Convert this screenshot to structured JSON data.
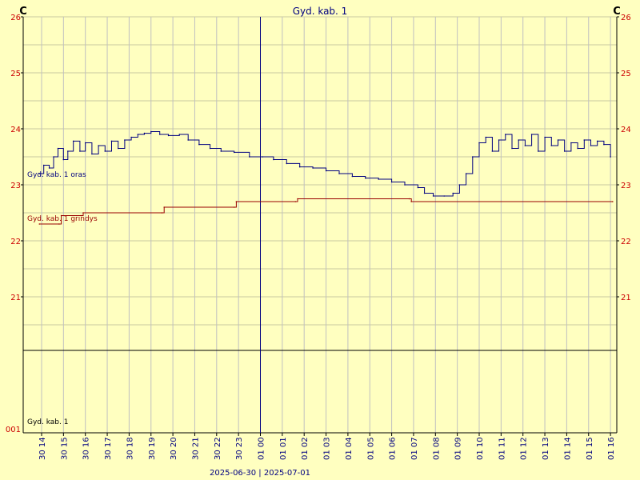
{
  "chart_data": {
    "type": "line",
    "title": "Gyd. kab. 1",
    "unit_left": "C",
    "unit_right": "C",
    "y_ticks": [
      "26",
      "25",
      "24",
      "23",
      "22",
      "21"
    ],
    "ylim": [
      20,
      26
    ],
    "grid": true,
    "x_ticks": [
      "30 14",
      "30 15",
      "30 16",
      "30 17",
      "30 18",
      "30 19",
      "30 20",
      "30 21",
      "30 22",
      "30 23",
      "01 00",
      "01 01",
      "01 02",
      "01 03",
      "01 04",
      "01 05",
      "01 06",
      "01 07",
      "01 08",
      "01 09",
      "01 10",
      "01 11",
      "01 12",
      "01 13",
      "01 14",
      "01 15",
      "01 16"
    ],
    "date_footer": "2025-06-30  |  2025-07-01",
    "lower_panel_label": "Gyd. kab. 1",
    "lower_panel_tick": "001",
    "series": [
      {
        "name": "Gyd. kab. 1 oras",
        "color": "#000080",
        "points": [
          [
            "30 13.90",
            23.2
          ],
          [
            "30 14.10",
            23.35
          ],
          [
            "30 14.35",
            23.3
          ],
          [
            "30 14.55",
            23.5
          ],
          [
            "30 14.75",
            23.65
          ],
          [
            "30 15.00",
            23.45
          ],
          [
            "30 15.20",
            23.6
          ],
          [
            "30 15.45",
            23.78
          ],
          [
            "30 15.75",
            23.6
          ],
          [
            "30 16.00",
            23.75
          ],
          [
            "30 16.30",
            23.55
          ],
          [
            "30 16.60",
            23.7
          ],
          [
            "30 16.90",
            23.6
          ],
          [
            "30 17.20",
            23.78
          ],
          [
            "30 17.50",
            23.65
          ],
          [
            "30 17.80",
            23.8
          ],
          [
            "30 18.10",
            23.85
          ],
          [
            "30 18.40",
            23.9
          ],
          [
            "30 18.70",
            23.92
          ],
          [
            "30 19.00",
            23.95
          ],
          [
            "30 19.40",
            23.9
          ],
          [
            "30 19.80",
            23.88
          ],
          [
            "30 20.30",
            23.9
          ],
          [
            "30 20.70",
            23.8
          ],
          [
            "30 21.20",
            23.72
          ],
          [
            "30 21.70",
            23.65
          ],
          [
            "30 22.20",
            23.6
          ],
          [
            "30 22.80",
            23.58
          ],
          [
            "30 23.50",
            23.5
          ],
          [
            "01 00.10",
            23.5
          ],
          [
            "01 00.60",
            23.45
          ],
          [
            "01 01.20",
            23.38
          ],
          [
            "01 01.80",
            23.32
          ],
          [
            "01 02.40",
            23.3
          ],
          [
            "01 03.00",
            23.25
          ],
          [
            "01 03.60",
            23.2
          ],
          [
            "01 04.20",
            23.15
          ],
          [
            "01 04.80",
            23.12
          ],
          [
            "01 05.40",
            23.1
          ],
          [
            "01 06.00",
            23.05
          ],
          [
            "01 06.60",
            23.0
          ],
          [
            "01 07.20",
            22.95
          ],
          [
            "01 07.50",
            22.85
          ],
          [
            "01 07.90",
            22.8
          ],
          [
            "01 08.40",
            22.8
          ],
          [
            "01 08.80",
            22.85
          ],
          [
            "01 09.10",
            23.0
          ],
          [
            "01 09.40",
            23.2
          ],
          [
            "01 09.70",
            23.5
          ],
          [
            "01 10.00",
            23.75
          ],
          [
            "01 10.30",
            23.85
          ],
          [
            "01 10.60",
            23.6
          ],
          [
            "01 10.90",
            23.8
          ],
          [
            "01 11.20",
            23.9
          ],
          [
            "01 11.50",
            23.65
          ],
          [
            "01 11.80",
            23.8
          ],
          [
            "01 12.10",
            23.7
          ],
          [
            "01 12.40",
            23.9
          ],
          [
            "01 12.70",
            23.6
          ],
          [
            "01 13.00",
            23.85
          ],
          [
            "01 13.30",
            23.7
          ],
          [
            "01 13.60",
            23.8
          ],
          [
            "01 13.90",
            23.6
          ],
          [
            "01 14.20",
            23.75
          ],
          [
            "01 14.50",
            23.65
          ],
          [
            "01 14.80",
            23.8
          ],
          [
            "01 15.10",
            23.7
          ],
          [
            "01 15.40",
            23.78
          ],
          [
            "01 15.70",
            23.72
          ],
          [
            "01 16.00",
            23.5
          ]
        ]
      },
      {
        "name": "Gyd. kab. 1 grindys",
        "color": "#990000",
        "points": [
          [
            "30 13.90",
            22.3
          ],
          [
            "30 14.80",
            22.3
          ],
          [
            "30 14.90",
            22.45
          ],
          [
            "30 15.80",
            22.45
          ],
          [
            "30 15.90",
            22.5
          ],
          [
            "30 19.50",
            22.5
          ],
          [
            "30 19.60",
            22.6
          ],
          [
            "30 22.80",
            22.6
          ],
          [
            "30 22.90",
            22.7
          ],
          [
            "01 01.60",
            22.7
          ],
          [
            "01 01.70",
            22.75
          ],
          [
            "01 06.80",
            22.75
          ],
          [
            "01 06.90",
            22.7
          ],
          [
            "01 16.10",
            22.7
          ]
        ]
      }
    ]
  }
}
